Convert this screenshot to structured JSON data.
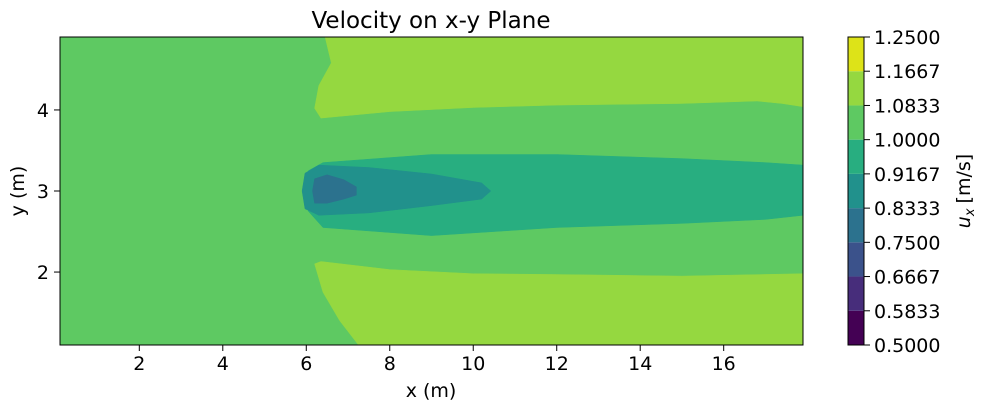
{
  "chart_data": {
    "type": "heatmap",
    "subtype": "filled-contour",
    "title": "Velocity on x-y Plane",
    "xlabel": "x (m)",
    "ylabel": "y (m)",
    "colorbar_label": "u_x [m/s]",
    "colorbar_label_parts": {
      "symbol": "u",
      "subscript": "x",
      "unit": "[m/s]"
    },
    "colormap": "viridis",
    "xlim": [
      0.1,
      17.9
    ],
    "ylim": [
      1.1,
      4.9
    ],
    "xticks": [
      2,
      4,
      6,
      8,
      10,
      12,
      14,
      16
    ],
    "xtick_labels": [
      "2",
      "4",
      "6",
      "8",
      "10",
      "12",
      "14",
      "16"
    ],
    "yticks": [
      2,
      3,
      4
    ],
    "ytick_labels": [
      "2",
      "3",
      "4"
    ],
    "contour_levels": [
      0.5,
      0.5833,
      0.6667,
      0.75,
      0.8333,
      0.9167,
      1.0,
      1.0833,
      1.1667,
      1.25
    ],
    "colorbar_tick_labels": [
      "1.2500",
      "1.1667",
      "1.0833",
      "1.0000",
      "0.9167",
      "0.8333",
      "0.7500",
      "0.6667",
      "0.5833",
      "0.5000"
    ],
    "level_colors": [
      "#440154",
      "#472d7b",
      "#3b528b",
      "#2c728e",
      "#21918c",
      "#28ae80",
      "#5ec962",
      "#95d840",
      "#dde318"
    ],
    "regions": [
      {
        "name": "background",
        "range": [
          1.0,
          1.0833
        ],
        "color": "#5ec962",
        "polygon": [
          [
            0.1,
            1.1
          ],
          [
            17.9,
            1.1
          ],
          [
            17.9,
            4.9
          ],
          [
            0.1,
            4.9
          ]
        ]
      },
      {
        "name": "upper-high",
        "range": [
          1.0833,
          1.1667
        ],
        "color": "#95d840",
        "polygon": [
          [
            6.45,
            4.9
          ],
          [
            17.9,
            4.9
          ],
          [
            17.9,
            4.04
          ],
          [
            17.4,
            4.08
          ],
          [
            16.8,
            4.11
          ],
          [
            15.0,
            4.08
          ],
          [
            12.0,
            4.06
          ],
          [
            10.0,
            4.03
          ],
          [
            8.0,
            3.98
          ],
          [
            6.35,
            3.9
          ],
          [
            6.2,
            4.02
          ],
          [
            6.3,
            4.3
          ],
          [
            6.6,
            4.58
          ]
        ]
      },
      {
        "name": "lower-high",
        "range": [
          1.0833,
          1.1667
        ],
        "color": "#95d840",
        "polygon": [
          [
            6.2,
            2.1
          ],
          [
            6.35,
            2.13
          ],
          [
            8.0,
            2.03
          ],
          [
            10.0,
            1.98
          ],
          [
            12.0,
            1.97
          ],
          [
            15.0,
            1.95
          ],
          [
            17.9,
            1.98
          ],
          [
            17.9,
            1.1
          ],
          [
            7.25,
            1.1
          ],
          [
            6.8,
            1.4
          ],
          [
            6.4,
            1.75
          ]
        ]
      },
      {
        "name": "wake-outer",
        "range": [
          0.9167,
          1.0
        ],
        "color": "#28ae80",
        "polygon": [
          [
            6.0,
            3.0
          ],
          [
            6.05,
            3.25
          ],
          [
            6.4,
            3.35
          ],
          [
            9.0,
            3.45
          ],
          [
            12.0,
            3.45
          ],
          [
            15.0,
            3.4
          ],
          [
            17.0,
            3.35
          ],
          [
            17.9,
            3.32
          ],
          [
            17.9,
            2.7
          ],
          [
            17.0,
            2.65
          ],
          [
            15.0,
            2.6
          ],
          [
            12.0,
            2.55
          ],
          [
            9.0,
            2.45
          ],
          [
            6.4,
            2.55
          ],
          [
            6.05,
            2.75
          ]
        ]
      },
      {
        "name": "wake-core",
        "range": [
          0.8333,
          0.9167
        ],
        "color": "#21918c",
        "polygon": [
          [
            5.9,
            3.0
          ],
          [
            5.97,
            3.22
          ],
          [
            6.3,
            3.32
          ],
          [
            7.5,
            3.29
          ],
          [
            9.0,
            3.21
          ],
          [
            10.2,
            3.1
          ],
          [
            10.42,
            3.0
          ],
          [
            10.2,
            2.9
          ],
          [
            9.0,
            2.82
          ],
          [
            7.5,
            2.73
          ],
          [
            6.3,
            2.7
          ],
          [
            5.97,
            2.78
          ]
        ]
      },
      {
        "name": "wake-min",
        "range": [
          0.75,
          0.8333
        ],
        "color": "#2c728e",
        "polygon": [
          [
            6.15,
            3.0
          ],
          [
            6.2,
            3.15
          ],
          [
            6.5,
            3.2
          ],
          [
            6.9,
            3.14
          ],
          [
            7.2,
            3.05
          ],
          [
            7.2,
            2.95
          ],
          [
            6.9,
            2.9
          ],
          [
            6.5,
            2.85
          ],
          [
            6.2,
            2.85
          ]
        ]
      }
    ]
  }
}
